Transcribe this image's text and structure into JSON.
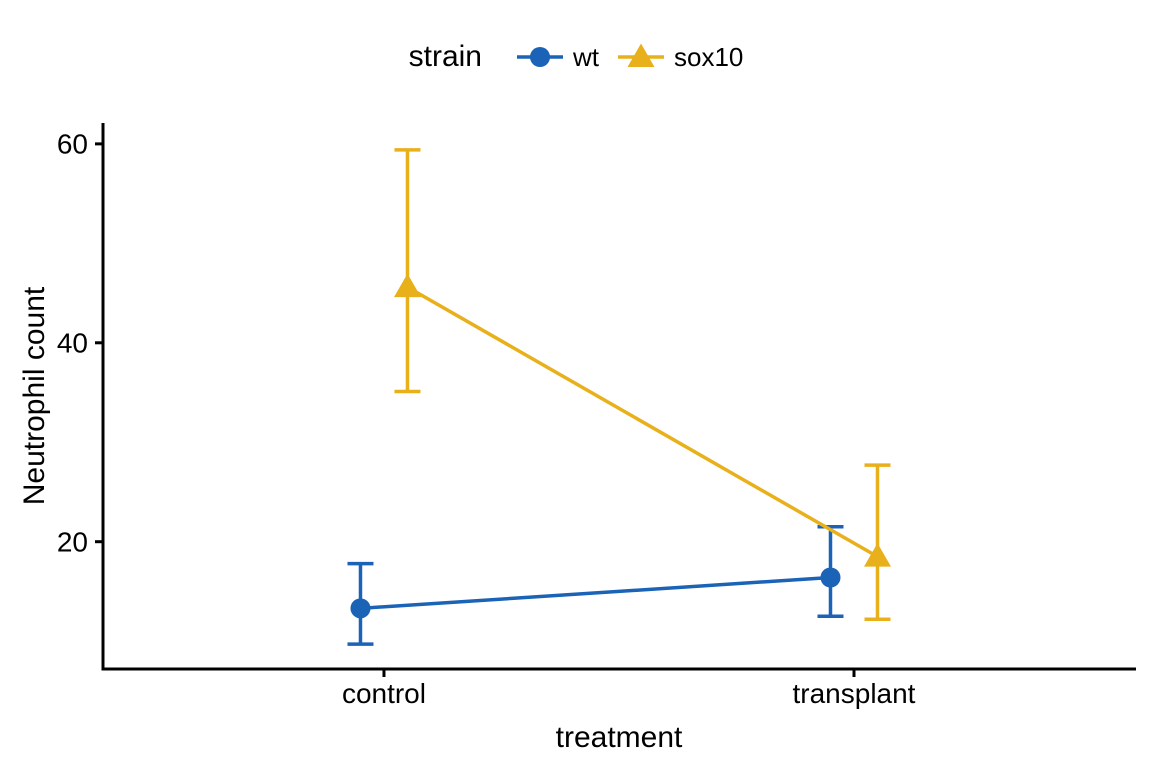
{
  "chart_data": {
    "type": "line",
    "title": "",
    "xlabel": "treatment",
    "ylabel": "Neutrophil count",
    "categories": [
      "control",
      "transplant"
    ],
    "yticks": [
      20,
      40,
      60
    ],
    "ylim": [
      7.2,
      62.1
    ],
    "grid": false,
    "background": "#FFFFFF",
    "axis_color": "#000000",
    "text_color": "#000000",
    "legend": {
      "title": "strain",
      "position": "top"
    },
    "series": [
      {
        "name": "wt",
        "marker": "circle",
        "color": "#1B63B6",
        "values": [
          13.3,
          16.4
        ],
        "ci_low": [
          9.7,
          12.5
        ],
        "ci_high": [
          17.8,
          21.5
        ]
      },
      {
        "name": "sox10",
        "marker": "triangle",
        "color": "#E8B01B",
        "values": [
          45.6,
          18.5
        ],
        "ci_low": [
          35.1,
          12.2
        ],
        "ci_high": [
          59.4,
          27.7
        ]
      }
    ]
  }
}
